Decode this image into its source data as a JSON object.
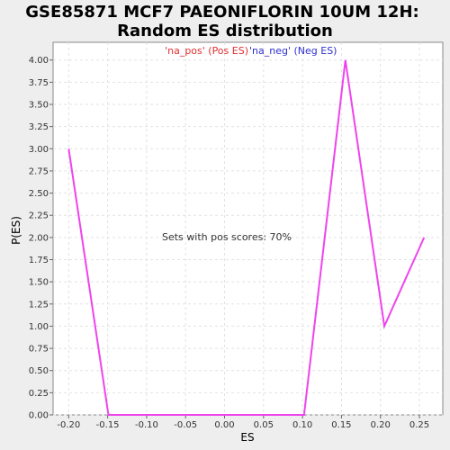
{
  "chart_data": {
    "type": "line",
    "title_lines": [
      "GSE85871 MCF7 PAEONIFLORIN 10UM 12H:",
      "Random ES distribution"
    ],
    "xlabel": "ES",
    "ylabel": "P(ES)",
    "xlim": [
      -0.22,
      0.28
    ],
    "ylim": [
      0,
      4.2
    ],
    "xticks": [
      "-0.20",
      "-0.15",
      "-0.10",
      "-0.05",
      "0.00",
      "0.05",
      "0.10",
      "0.15",
      "0.20",
      "0.25"
    ],
    "xtick_values": [
      -0.2,
      -0.15,
      -0.1,
      -0.05,
      0.0,
      0.05,
      0.1,
      0.15,
      0.2,
      0.25
    ],
    "yticks": [
      "0.00",
      "0.25",
      "0.50",
      "0.75",
      "1.00",
      "1.25",
      "1.50",
      "1.75",
      "2.00",
      "2.25",
      "2.50",
      "2.75",
      "3.00",
      "3.25",
      "3.50",
      "3.75",
      "4.00"
    ],
    "ytick_values": [
      0,
      0.25,
      0.5,
      0.75,
      1.0,
      1.25,
      1.5,
      1.75,
      2.0,
      2.25,
      2.5,
      2.75,
      3.0,
      3.25,
      3.5,
      3.75,
      4.0
    ],
    "grid": true,
    "legend_position": "top-center",
    "legend": [
      {
        "label": "'na_pos' (Pos ES)",
        "color": "#e03030"
      },
      {
        "label": "'na_neg' (Neg ES)",
        "color": "#3030d0"
      }
    ],
    "annotation": "Sets with pos scores: 70%",
    "series": [
      {
        "color": "#ee44ee",
        "points": [
          [
            -0.2,
            3.0
          ],
          [
            -0.149,
            0.0
          ],
          [
            0.102,
            0.0
          ],
          [
            0.155,
            4.0
          ],
          [
            0.205,
            1.0
          ],
          [
            0.256,
            2.0
          ]
        ]
      }
    ]
  }
}
